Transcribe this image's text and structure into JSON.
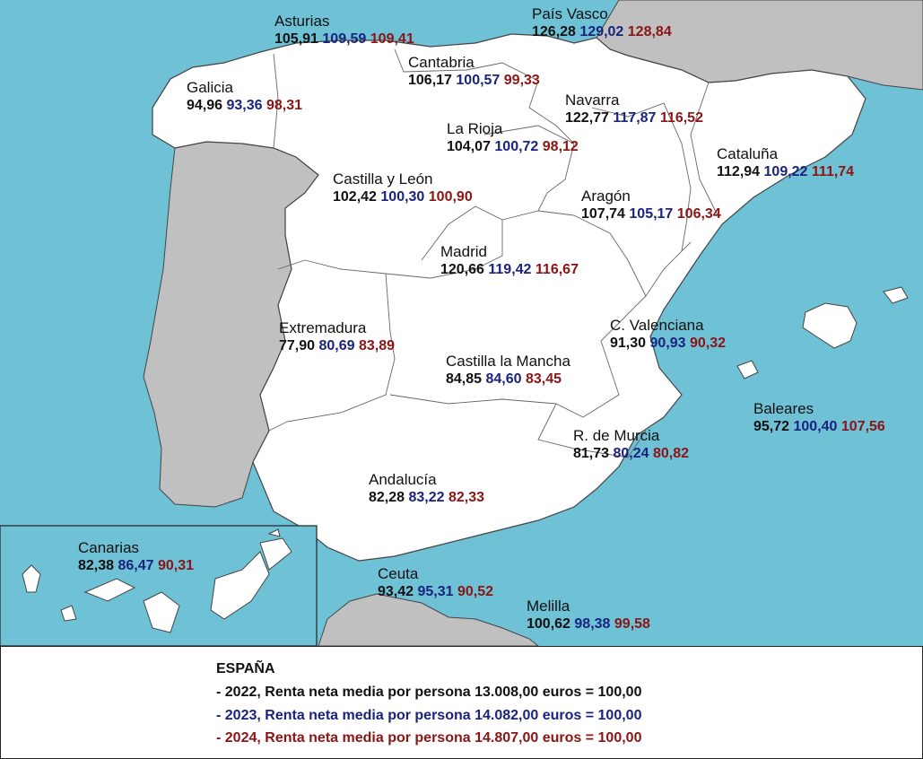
{
  "colors": {
    "sea": "#6fc1d6",
    "land_spain": "#ffffff",
    "land_other": "#c0c0c0",
    "border": "#444444",
    "year_2022": "#111111",
    "year_2023": "#1a237e",
    "year_2024": "#8b1515"
  },
  "regions": [
    {
      "name": "Asturias",
      "v2022": "105,91",
      "v2023": "109,59",
      "v2024": "109,41"
    },
    {
      "name": "País Vasco",
      "v2022": "126,28",
      "v2023": "129,02",
      "v2024": "128,84"
    },
    {
      "name": "Cantabria",
      "v2022": "106,17",
      "v2023": "100,57",
      "v2024": "99,33"
    },
    {
      "name": "Galicia",
      "v2022": "94,96",
      "v2023": "93,36",
      "v2024": "98,31"
    },
    {
      "name": "Navarra",
      "v2022": "122,77",
      "v2023": "117,87",
      "v2024": "116,52"
    },
    {
      "name": "La Rioja",
      "v2022": "104,07",
      "v2023": "100,72",
      "v2024": "98,12"
    },
    {
      "name": "Cataluña",
      "v2022": "112,94",
      "v2023": "109,22",
      "v2024": "111,74"
    },
    {
      "name": "Castilla y León",
      "v2022": "102,42",
      "v2023": "100,30",
      "v2024": "100,90"
    },
    {
      "name": "Aragón",
      "v2022": "107,74",
      "v2023": "105,17",
      "v2024": "106,34"
    },
    {
      "name": "Madrid",
      "v2022": "120,66",
      "v2023": "119,42",
      "v2024": "116,67"
    },
    {
      "name": "C. Valenciana",
      "v2022": "91,30",
      "v2023": "90,93",
      "v2024": "90,32"
    },
    {
      "name": "Extremadura",
      "v2022": "77,90",
      "v2023": "80,69",
      "v2024": "83,89"
    },
    {
      "name": "Castilla la Mancha",
      "v2022": "84,85",
      "v2023": "84,60",
      "v2024": "83,45"
    },
    {
      "name": "Baleares",
      "v2022": "95,72",
      "v2023": "100,40",
      "v2024": "107,56"
    },
    {
      "name": "R. de Murcia",
      "v2022": "81,73",
      "v2023": "80,24",
      "v2024": "80,82"
    },
    {
      "name": "Andalucía",
      "v2022": "82,28",
      "v2023": "83,22",
      "v2024": "82,33"
    },
    {
      "name": "Canarias",
      "v2022": "82,38",
      "v2023": "86,47",
      "v2024": "90,31"
    },
    {
      "name": "Ceuta",
      "v2022": "93,42",
      "v2023": "95,31",
      "v2024": "90,52"
    },
    {
      "name": "Melilla",
      "v2022": "100,62",
      "v2023": "98,38",
      "v2024": "99,58"
    }
  ],
  "legend": {
    "title": "ESPAÑA",
    "line_2022": "- 2022, Renta neta media por persona 13.008,00 euros = 100,00",
    "line_2023": "- 2023, Renta neta media por persona 14.082,00 euros = 100,00",
    "line_2024": "- 2024, Renta neta media por persona 14.807,00 euros = 100,00"
  }
}
